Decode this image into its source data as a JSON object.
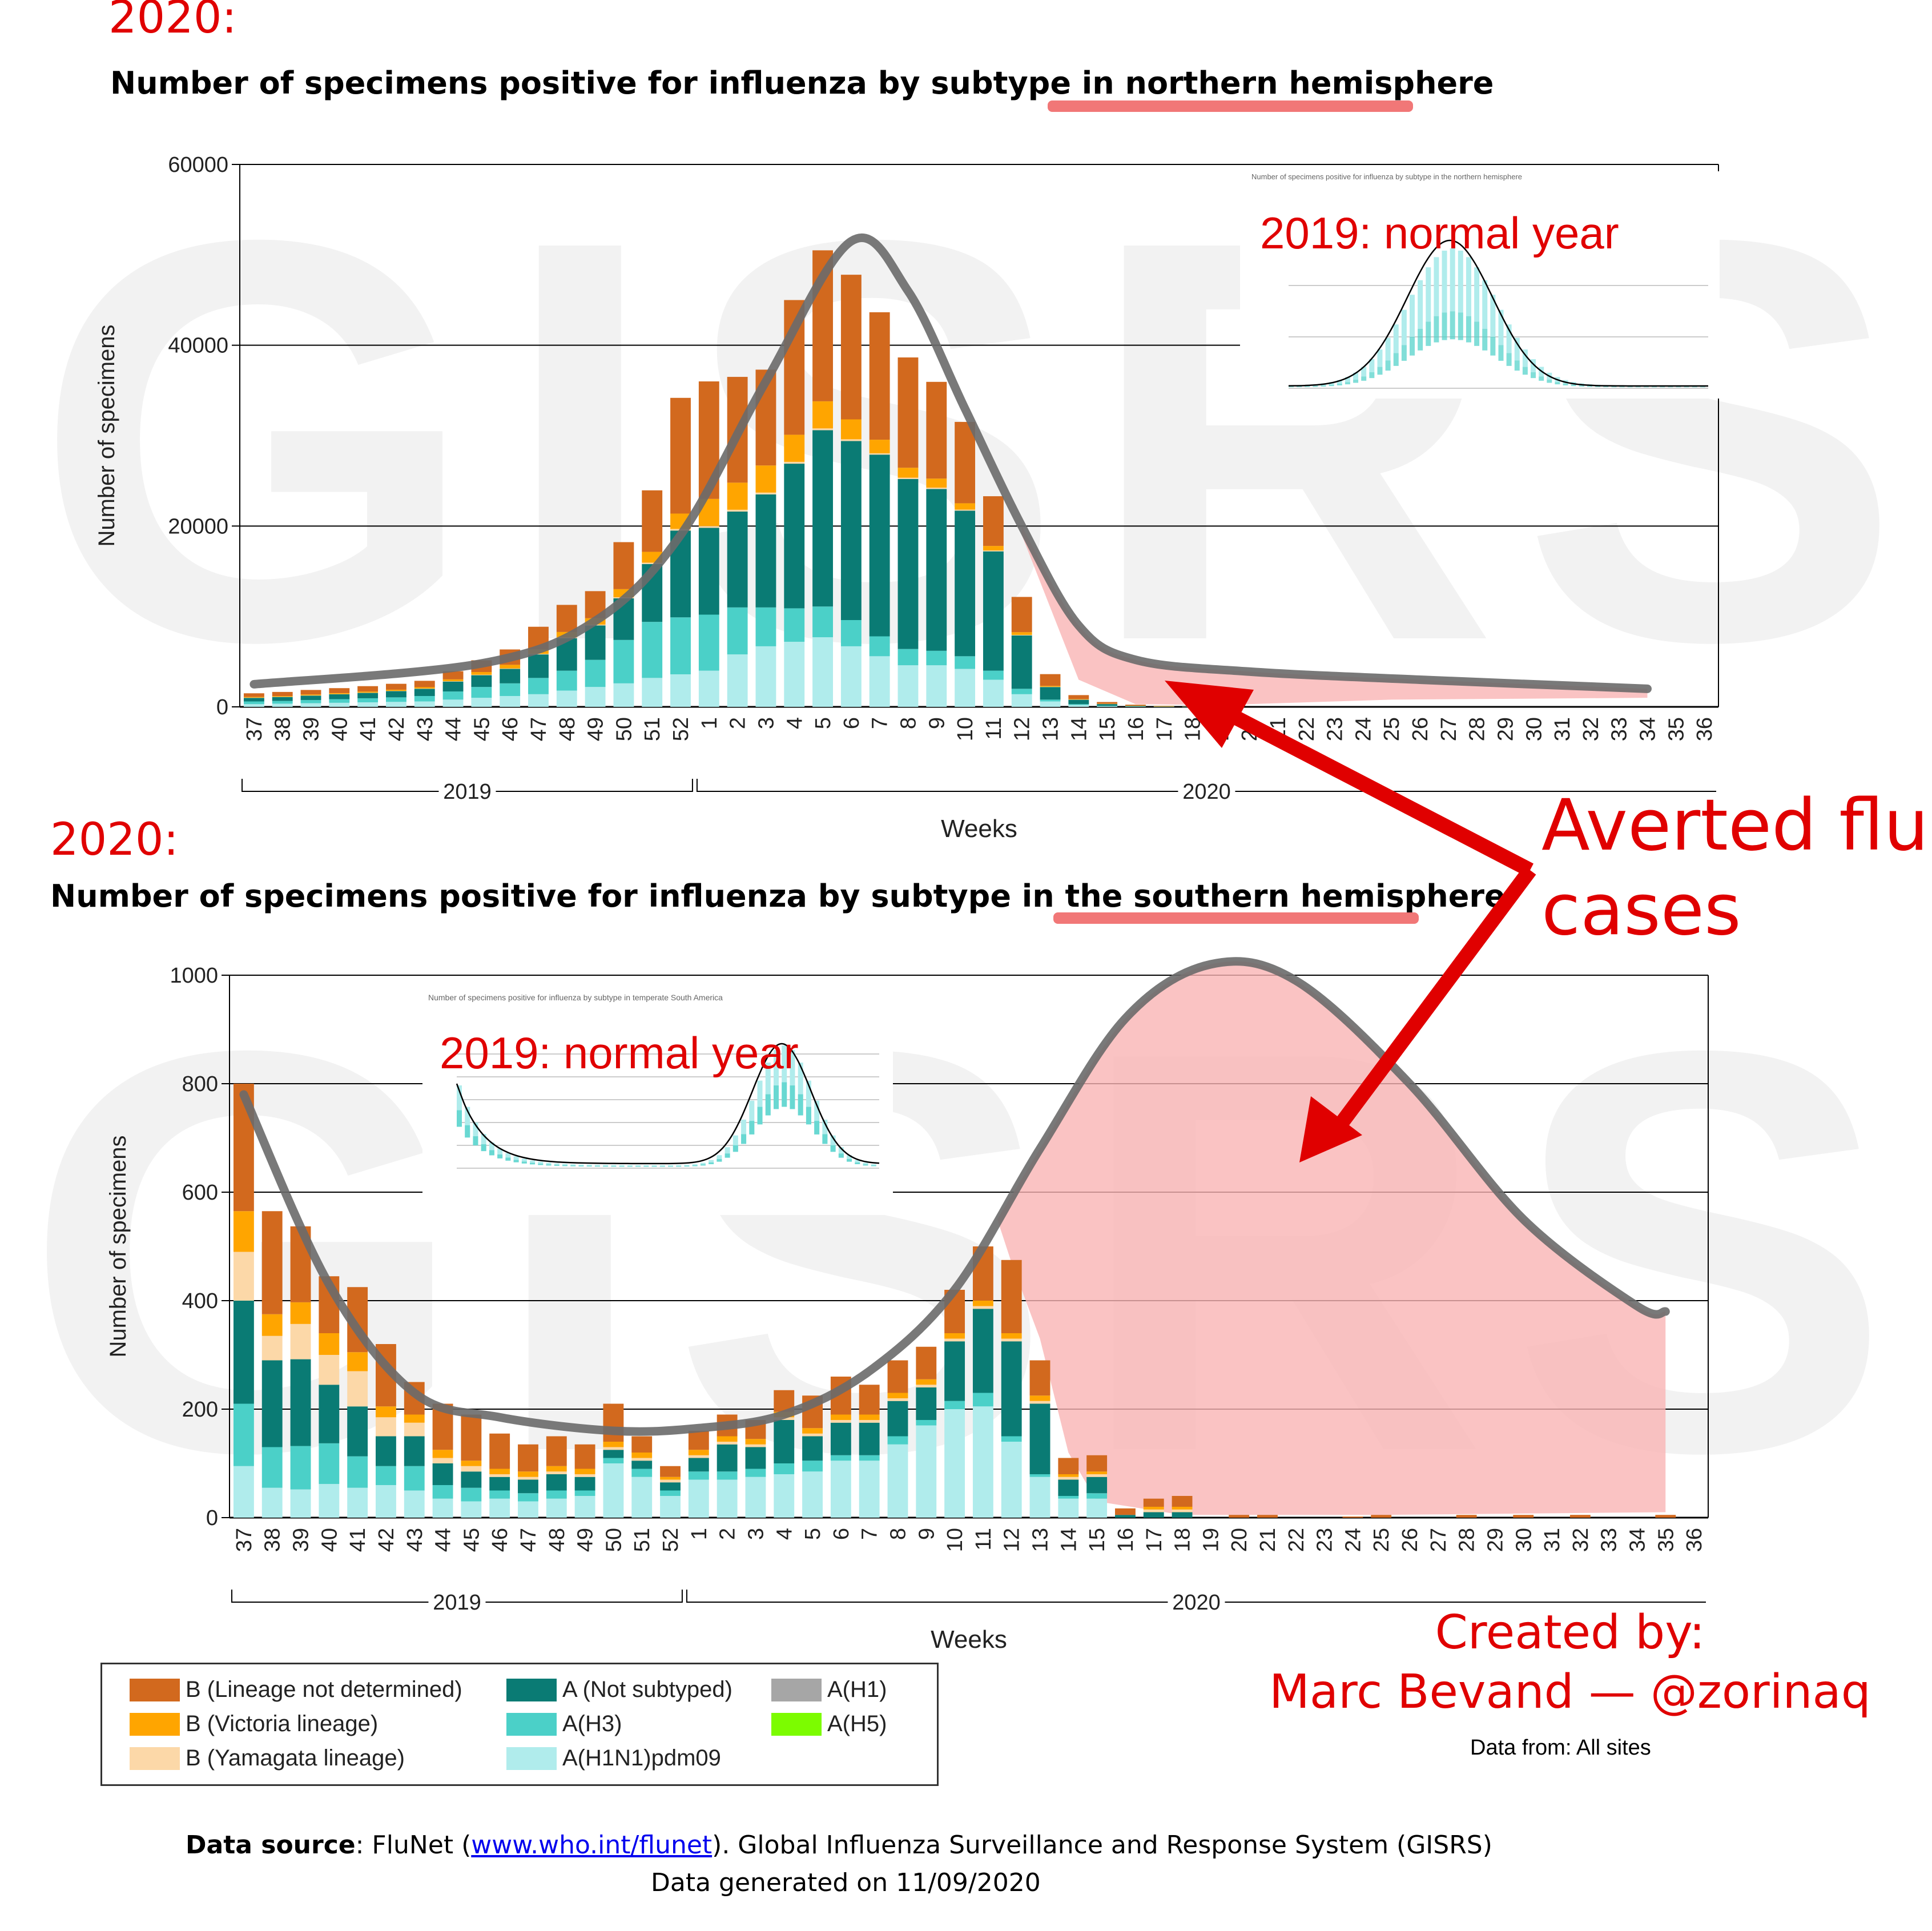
{
  "north": {
    "year_label": "2020:",
    "title_prefix": "Number of specimens positive for influenza by subtype in ",
    "title_highlight": "northern hemisphere",
    "inset_label": "2019: normal year",
    "inset_title": "Number of specimens positive for influenza by subtype in the northern hemisphere"
  },
  "south": {
    "year_label": "2020:",
    "title_prefix": "Number of specimens positive for influenza by subtype in the ",
    "title_highlight": "southern hemisphere",
    "inset_label": "2019: normal year",
    "inset_title": "Number of specimens positive for influenza by subtype in temperate South America"
  },
  "watermark": "GISRS",
  "callout": {
    "line1": "Averted flu",
    "line2": "cases"
  },
  "credit": {
    "line1": "Created by:",
    "line2": "Marc Bevand — @zorinaq"
  },
  "data_from": "Data from: All sites",
  "legend": [
    {
      "label": "B (Lineage not determined)",
      "color": "#d2691e"
    },
    {
      "label": "A (Not subtyped)",
      "color": "#0a7b74"
    },
    {
      "label": "A(H1)",
      "color": "#a6a6a6"
    },
    {
      "label": "B (Victoria lineage)",
      "color": "#ffa500"
    },
    {
      "label": "A(H3)",
      "color": "#4bd0c8"
    },
    {
      "label": "A(H5)",
      "color": "#7cfc00"
    },
    {
      "label": "B (Yamagata lineage)",
      "color": "#fcd8a8"
    },
    {
      "label": "A(H1N1)pdm09",
      "color": "#b0ecec"
    }
  ],
  "source": {
    "bold": "Data source",
    "pre_link": ": FluNet (",
    "link": "www.who.int/flunet",
    "post_link": "). Global Influenza Surveillance and Response System (GISRS)",
    "line2": "Data generated on 11/09/2020"
  },
  "colors": {
    "pdm09": "#b0ecec",
    "h3": "#4bd0c8",
    "a_ns": "#0a7b74",
    "b_yam": "#fcd8a8",
    "b_vic": "#ffa500",
    "b_nd": "#d2691e",
    "averted_fill": "#f9b4b4",
    "curve": "#6a6a6a",
    "annotation": "#e00000"
  },
  "chart_data": [
    {
      "type": "bar",
      "stacked": true,
      "title": "Number of specimens positive for influenza by subtype in northern hemisphere",
      "xlabel": "Weeks",
      "ylabel": "Number of specimens",
      "ylim": [
        0,
        60000
      ],
      "yticks": [
        "0",
        "20000",
        "40000",
        "60000"
      ],
      "grid": true,
      "categories": [
        "37",
        "38",
        "39",
        "40",
        "41",
        "42",
        "43",
        "44",
        "45",
        "46",
        "47",
        "48",
        "49",
        "50",
        "51",
        "52",
        "1",
        "2",
        "3",
        "4",
        "5",
        "6",
        "7",
        "8",
        "9",
        "10",
        "11",
        "12",
        "13",
        "14",
        "15",
        "16",
        "17",
        "18",
        "19",
        "20",
        "21",
        "22",
        "23",
        "24",
        "25",
        "26",
        "27",
        "28",
        "29",
        "30",
        "31",
        "32",
        "33",
        "34",
        "35",
        "36"
      ],
      "year_groups": [
        {
          "label": "2019",
          "from": "37",
          "to": "52"
        },
        {
          "label": "2020",
          "from": "1",
          "to": "36"
        }
      ],
      "series": [
        {
          "name": "A(H1N1)pdm09",
          "values": [
            300,
            350,
            400,
            450,
            500,
            550,
            600,
            800,
            1000,
            1200,
            1400,
            1800,
            2200,
            2600,
            3200,
            3600,
            4000,
            5800,
            6700,
            7200,
            7700,
            6700,
            5600,
            4600,
            4600,
            4200,
            3000,
            1400,
            600,
            200,
            80,
            40,
            20,
            10,
            5,
            0,
            0,
            0,
            0,
            0,
            0,
            0,
            0,
            0,
            0,
            0,
            0,
            0,
            0,
            0,
            0,
            0
          ]
        },
        {
          "name": "A(H3)",
          "values": [
            300,
            300,
            350,
            400,
            450,
            500,
            600,
            900,
            1200,
            1400,
            1800,
            2200,
            3000,
            4800,
            6200,
            6300,
            6200,
            5200,
            4300,
            3700,
            3400,
            2900,
            2200,
            1800,
            1600,
            1400,
            1000,
            600,
            200,
            100,
            50,
            20,
            10,
            5,
            0,
            0,
            0,
            0,
            0,
            0,
            0,
            0,
            0,
            0,
            0,
            0,
            0,
            0,
            0,
            0,
            0,
            0
          ]
        },
        {
          "name": "A (Not subtyped)",
          "values": [
            400,
            450,
            500,
            550,
            600,
            700,
            800,
            1100,
            1300,
            1600,
            2600,
            3600,
            3800,
            4600,
            6400,
            9600,
            9600,
            10600,
            12500,
            16000,
            19500,
            19800,
            20100,
            18800,
            17900,
            16100,
            13200,
            5900,
            1400,
            500,
            200,
            60,
            30,
            10,
            5,
            0,
            0,
            0,
            0,
            0,
            0,
            0,
            0,
            0,
            0,
            0,
            0,
            0,
            0,
            0,
            0,
            0
          ]
        },
        {
          "name": "B (Yamagata lineage)",
          "values": [
            20,
            20,
            20,
            20,
            20,
            20,
            30,
            40,
            50,
            50,
            60,
            80,
            100,
            120,
            150,
            180,
            200,
            200,
            200,
            200,
            200,
            200,
            150,
            150,
            150,
            120,
            100,
            60,
            20,
            10,
            5,
            0,
            0,
            0,
            0,
            0,
            0,
            0,
            0,
            0,
            0,
            0,
            0,
            0,
            0,
            0,
            0,
            0,
            0,
            0,
            0,
            0
          ]
        },
        {
          "name": "B (Victoria lineage)",
          "values": [
            80,
            80,
            100,
            100,
            120,
            130,
            150,
            200,
            300,
            400,
            500,
            600,
            700,
            900,
            1200,
            1700,
            3000,
            3000,
            3000,
            3000,
            3000,
            2200,
            1500,
            1100,
            1000,
            700,
            500,
            300,
            100,
            50,
            20,
            10,
            5,
            0,
            0,
            0,
            0,
            0,
            0,
            0,
            0,
            0,
            0,
            0,
            0,
            0,
            0,
            0,
            0,
            0,
            0,
            0
          ]
        },
        {
          "name": "B (Lineage not determined)",
          "values": [
            400,
            450,
            500,
            550,
            600,
            650,
            700,
            900,
            1300,
            1700,
            2500,
            3000,
            3000,
            5200,
            6800,
            12800,
            13000,
            11700,
            10600,
            14900,
            16700,
            16000,
            14100,
            12200,
            10700,
            9000,
            5500,
            3900,
            1300,
            440,
            180,
            110,
            50,
            25,
            10,
            0,
            0,
            0,
            0,
            0,
            0,
            0,
            0,
            0,
            0,
            0,
            0,
            0,
            0,
            0,
            0,
            0
          ]
        }
      ]
    },
    {
      "type": "bar",
      "stacked": true,
      "title": "Number of specimens positive for influenza by subtype in the southern hemisphere",
      "xlabel": "Weeks",
      "ylabel": "Number of specimens",
      "ylim": [
        0,
        1000
      ],
      "yticks": [
        "0",
        "200",
        "400",
        "600",
        "800",
        "1000"
      ],
      "grid": true,
      "categories": [
        "37",
        "38",
        "39",
        "40",
        "41",
        "42",
        "43",
        "44",
        "45",
        "46",
        "47",
        "48",
        "49",
        "50",
        "51",
        "52",
        "1",
        "2",
        "3",
        "4",
        "5",
        "6",
        "7",
        "8",
        "9",
        "10",
        "11",
        "12",
        "13",
        "14",
        "15",
        "16",
        "17",
        "18",
        "19",
        "20",
        "21",
        "22",
        "23",
        "24",
        "25",
        "26",
        "27",
        "28",
        "29",
        "30",
        "31",
        "32",
        "33",
        "34",
        "35",
        "36"
      ],
      "year_groups": [
        {
          "label": "2019",
          "from": "37",
          "to": "52"
        },
        {
          "label": "2020",
          "from": "1",
          "to": "36"
        }
      ],
      "series": [
        {
          "name": "A(H1N1)pdm09",
          "values": [
            95,
            55,
            52,
            62,
            55,
            60,
            50,
            35,
            30,
            35,
            30,
            35,
            40,
            100,
            75,
            40,
            70,
            70,
            75,
            80,
            85,
            105,
            105,
            135,
            170,
            200,
            205,
            140,
            75,
            35,
            35,
            0,
            0,
            0,
            0,
            0,
            0,
            0,
            0,
            0,
            0,
            0,
            0,
            0,
            0,
            0,
            0,
            0,
            0,
            0,
            0,
            0
          ]
        },
        {
          "name": "A(H3)",
          "values": [
            115,
            75,
            80,
            75,
            58,
            35,
            45,
            25,
            25,
            15,
            15,
            15,
            10,
            10,
            15,
            10,
            15,
            15,
            15,
            20,
            20,
            10,
            10,
            15,
            10,
            15,
            25,
            10,
            5,
            5,
            10,
            0,
            0,
            0,
            0,
            0,
            0,
            0,
            0,
            0,
            0,
            0,
            0,
            0,
            0,
            0,
            0,
            0,
            0,
            0,
            0,
            0
          ]
        },
        {
          "name": "A (Not subtyped)",
          "values": [
            190,
            160,
            160,
            108,
            92,
            55,
            55,
            40,
            30,
            25,
            25,
            30,
            25,
            15,
            15,
            15,
            25,
            50,
            40,
            80,
            45,
            60,
            60,
            65,
            60,
            110,
            155,
            175,
            130,
            30,
            30,
            5,
            10,
            10,
            0,
            0,
            0,
            0,
            0,
            0,
            0,
            0,
            0,
            0,
            0,
            0,
            0,
            0,
            0,
            0,
            0,
            0
          ]
        },
        {
          "name": "B (Yamagata lineage)",
          "values": [
            90,
            45,
            65,
            55,
            65,
            35,
            25,
            10,
            10,
            5,
            5,
            5,
            5,
            5,
            5,
            5,
            5,
            5,
            5,
            5,
            5,
            5,
            5,
            5,
            5,
            5,
            5,
            5,
            5,
            5,
            5,
            0,
            5,
            5,
            0,
            0,
            0,
            0,
            0,
            0,
            0,
            0,
            0,
            0,
            0,
            0,
            0,
            0,
            0,
            0,
            0,
            0
          ]
        },
        {
          "name": "B (Victoria lineage)",
          "values": [
            75,
            40,
            40,
            40,
            35,
            20,
            15,
            15,
            10,
            10,
            10,
            10,
            10,
            10,
            10,
            5,
            10,
            10,
            10,
            10,
            10,
            10,
            10,
            10,
            10,
            10,
            10,
            10,
            10,
            5,
            5,
            0,
            5,
            5,
            0,
            0,
            0,
            0,
            0,
            0,
            0,
            0,
            0,
            0,
            0,
            0,
            0,
            0,
            0,
            0,
            0,
            0
          ]
        },
        {
          "name": "B (Lineage not determined)",
          "values": [
            235,
            190,
            140,
            105,
            120,
            115,
            60,
            85,
            85,
            65,
            50,
            55,
            45,
            70,
            30,
            20,
            35,
            40,
            35,
            40,
            60,
            70,
            55,
            60,
            60,
            80,
            100,
            135,
            65,
            30,
            30,
            12,
            15,
            20,
            0,
            5,
            5,
            0,
            0,
            2,
            5,
            0,
            0,
            5,
            0,
            5,
            0,
            5,
            0,
            0,
            5,
            0
          ]
        }
      ]
    }
  ]
}
